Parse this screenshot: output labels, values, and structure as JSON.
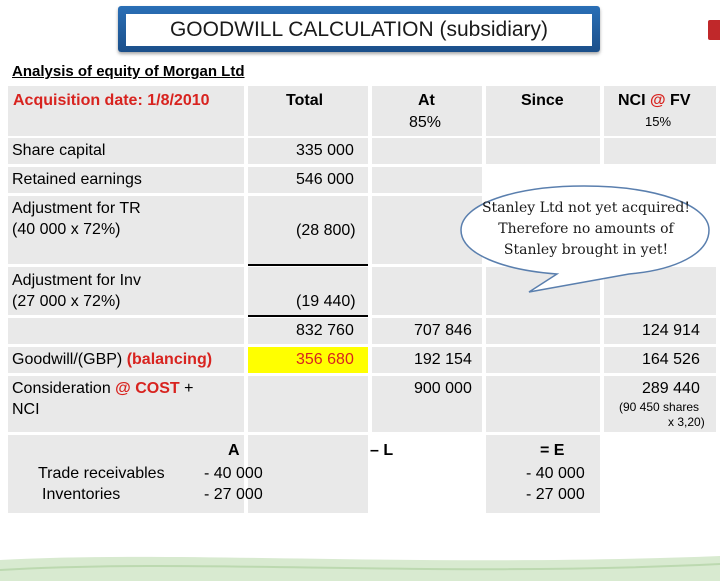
{
  "title": "GOODWILL CALCULATION (subsidiary)",
  "caption": "Analysis of equity of Morgan Ltd",
  "headers": {
    "acquisition": "Acquisition date: 1/8/2010",
    "total": "Total",
    "at85_line1": "At",
    "at85_line2": "85%",
    "since": "Since",
    "nci_prefix": "NCI ",
    "nci_at": "@",
    "nci_fv": " FV",
    "nci_pct": "15%"
  },
  "rows": {
    "share_capital": {
      "label": "Share capital",
      "total": "335 000"
    },
    "retained": {
      "label": "Retained earnings",
      "total": "546 000"
    },
    "adj_tr": {
      "label1": "Adjustment for TR",
      "label2": "(40 000 x 72%)",
      "total": "(28 800)"
    },
    "adj_inv": {
      "label1": "Adjustment for Inv",
      "label2": "(27 000 x 72%)",
      "total": "(19 440)"
    },
    "subtotal": {
      "total": "832 760",
      "at85": "707 846",
      "nci": "124 914"
    },
    "goodwill": {
      "label": "Goodwill/(GBP) ",
      "label_red": "(balancing)",
      "total": "356 680",
      "at85": "192 154",
      "nci": "164 526"
    },
    "consideration": {
      "label1": "Consideration ",
      "label_at": "@",
      "label_cost": " COST",
      "label_plus": " +",
      "label2": "NCI",
      "at85": "900 000",
      "nci": "289 440",
      "nci_note1": "(90 450 shares",
      "nci_note2": "x 3,20)"
    }
  },
  "callout": "Stanley Ltd not yet acquired! Therefore no amounts of Stanley brought in yet!",
  "equation": {
    "a_head": "A",
    "l_head": "– L",
    "e_head": "= E",
    "row1_label": "Trade receivables",
    "row1_a": "- 40 000",
    "row1_e": "- 40 000",
    "row2_label": "Inventories",
    "row2_a": "- 27 000",
    "row2_e": "- 27 000"
  },
  "colors": {
    "accent_red": "#d8231f",
    "title_blue": "#1b4f8a",
    "highlight_yellow": "#ffff00",
    "cell_grey": "#e9e9e9"
  }
}
